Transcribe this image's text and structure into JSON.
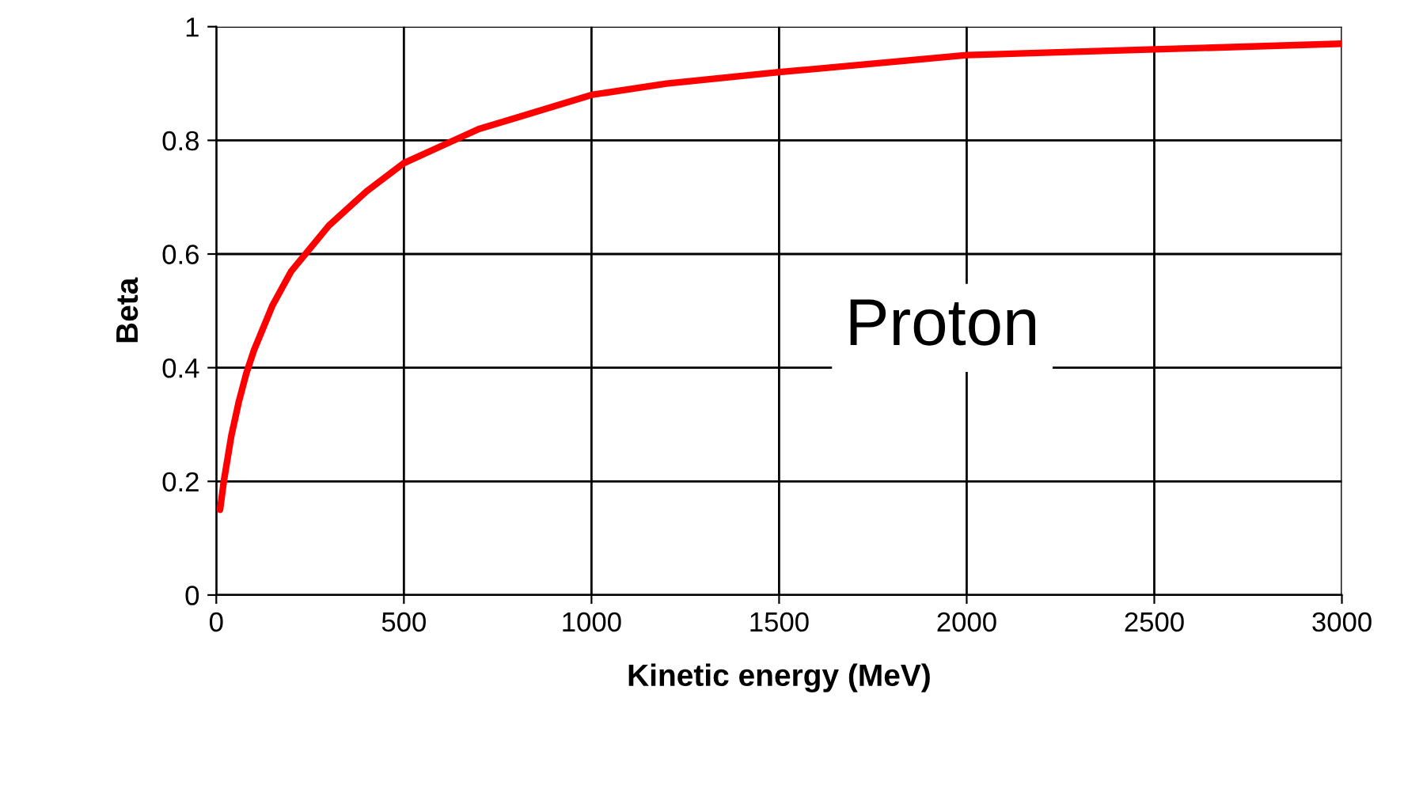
{
  "chart_data": {
    "type": "line",
    "xlabel": "Kinetic energy (MeV)",
    "ylabel": "Beta",
    "x": [
      10,
      20,
      40,
      60,
      80,
      100,
      150,
      200,
      250,
      300,
      400,
      500,
      600,
      700,
      800,
      1000,
      1200,
      1500,
      2000,
      2500,
      3000
    ],
    "series": [
      {
        "color": "#ff0000",
        "values": [
          0.15,
          0.2,
          0.28,
          0.34,
          0.39,
          0.43,
          0.51,
          0.57,
          0.61,
          0.65,
          0.71,
          0.76,
          0.79,
          0.82,
          0.84,
          0.88,
          0.9,
          0.92,
          0.95,
          0.96,
          0.97
        ]
      }
    ],
    "xlim": [
      0,
      3000
    ],
    "xticks": [
      0,
      500,
      1000,
      1500,
      2000,
      2500,
      3000
    ],
    "ylim": [
      0,
      1
    ],
    "yticks": [
      0,
      0.2,
      0.4,
      0.6,
      0.8,
      1
    ],
    "grid": true,
    "marker": "none",
    "line_style": "solid",
    "annotations": [
      "Proton"
    ]
  }
}
